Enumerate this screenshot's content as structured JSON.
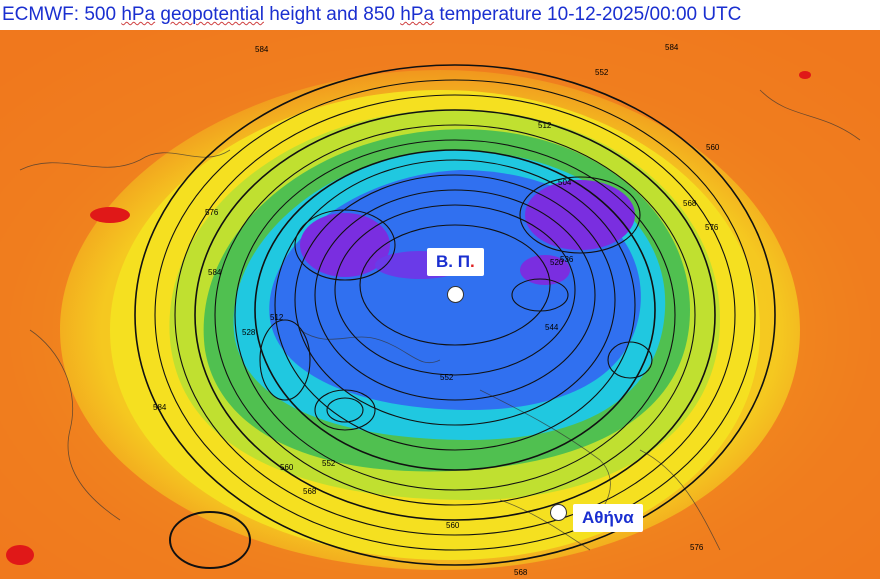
{
  "title": {
    "prefix": "ECMWF: 500 ",
    "unit1": "hPa",
    "mid1": " ",
    "geo": "geopotential",
    "mid2": " height and 850 ",
    "unit2": "hPa",
    "suffix": " temperature 10-12-2025/00:00 UTC"
  },
  "labels": {
    "north_pole_prefix": "Β. Π",
    "north_pole_dot": ".",
    "athens": "Αθήνα"
  },
  "contour_labels": [
    "584",
    "584",
    "576",
    "568",
    "560",
    "552",
    "552",
    "560",
    "568",
    "576",
    "584",
    "512",
    "504",
    "512",
    "520",
    "528",
    "536",
    "544",
    "552",
    "560",
    "568",
    "576",
    "584"
  ],
  "colors": {
    "title": "#1a2fd0",
    "warm_orange": "#f07a1e",
    "deep_orange": "#f05a14",
    "yellow": "#f5e020",
    "lime": "#c0e030",
    "green": "#50c050",
    "cyan": "#20c8e0",
    "blue": "#3070f0",
    "purple": "#7a2ee0",
    "red_spot": "#e01818"
  }
}
